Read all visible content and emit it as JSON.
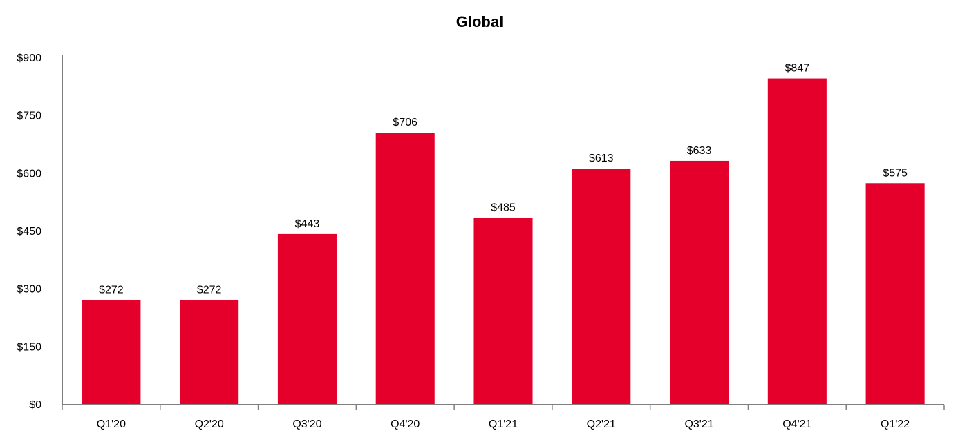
{
  "chart_data": {
    "type": "bar",
    "title": "Global",
    "xlabel": "",
    "ylabel": "",
    "categories": [
      "Q1'20",
      "Q2'20",
      "Q3'20",
      "Q4'20",
      "Q1'21",
      "Q2'21",
      "Q3'21",
      "Q4'21",
      "Q1'22"
    ],
    "values": [
      272,
      272,
      443,
      706,
      485,
      613,
      633,
      847,
      575
    ],
    "value_labels": [
      "$272",
      "$272",
      "$443",
      "$706",
      "$485",
      "$613",
      "$633",
      "$847",
      "$575"
    ],
    "ylim": [
      0,
      900
    ],
    "yticks": [
      0,
      150,
      300,
      450,
      600,
      750,
      900
    ],
    "ytick_labels": [
      "$0",
      "$150",
      "$300",
      "$450",
      "$600",
      "$750",
      "$900"
    ],
    "bar_color": "#e4002b",
    "grid": false,
    "legend": "none"
  }
}
